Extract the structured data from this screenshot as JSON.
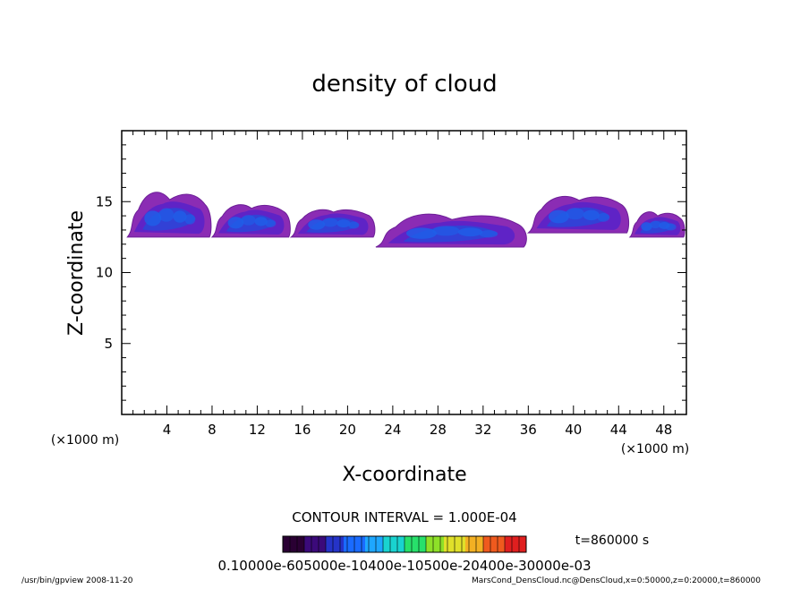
{
  "chart_data": {
    "type": "contour",
    "title": "density of cloud",
    "xlabel": "X-coordinate",
    "ylabel": "Z-coordinate",
    "x_unit_label": "(×1000 m)",
    "y_unit_label": "(×1000 m)",
    "xlim": [
      0,
      50
    ],
    "ylim": [
      0,
      20
    ],
    "x_ticks": [
      4,
      8,
      12,
      16,
      20,
      24,
      28,
      32,
      36,
      40,
      44,
      48
    ],
    "y_ticks": [
      5,
      10,
      15
    ],
    "contour_interval_text": "CONTOUR INTERVAL = 1.000E-04",
    "time_text": "t=860000 s",
    "colorbar_labels_text": "0.10000e-605000e-10400e-10500e-20400e-30000e-03",
    "colorbar_colors": [
      "#2a0033",
      "#3b0a7a",
      "#2533c8",
      "#1a6bff",
      "#1ea7ff",
      "#19d3d0",
      "#27e06b",
      "#8ee028",
      "#e0e02a",
      "#f3b023",
      "#ef5a1e",
      "#e01f1f"
    ],
    "cloud_layer_colors": {
      "outer": "#8b2cb4",
      "mid": "#5b23c8",
      "inner": "#2c46d8",
      "core": "#1e5fe8"
    },
    "cloud_segments": [
      {
        "x": [
          0.5,
          8.0
        ],
        "z": [
          12.5,
          15.5
        ],
        "max_z": 16.0
      },
      {
        "x": [
          8.0,
          15.0
        ],
        "z": [
          12.5,
          14.8
        ],
        "max_z": 15.0
      },
      {
        "x": [
          15.0,
          22.5
        ],
        "z": [
          12.5,
          14.5
        ],
        "max_z": 14.6
      },
      {
        "x": [
          22.5,
          36.0
        ],
        "z": [
          11.8,
          14.0
        ],
        "max_z": 14.4
      },
      {
        "x": [
          36.0,
          45.0
        ],
        "z": [
          12.8,
          15.4
        ],
        "max_z": 15.6
      },
      {
        "x": [
          45.0,
          49.9
        ],
        "z": [
          12.5,
          14.2
        ],
        "max_z": 14.5
      }
    ]
  },
  "footer": {
    "left": "/usr/bin/gpview   2008-11-20",
    "right": "MarsCond_DensCloud.nc@DensCloud,x=0:50000,z=0:20000,t=860000"
  }
}
